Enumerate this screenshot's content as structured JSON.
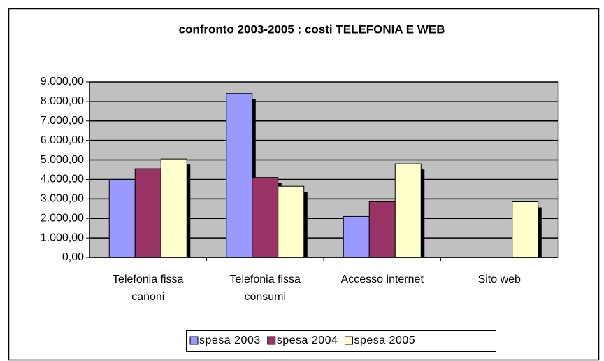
{
  "chart_data": {
    "type": "bar",
    "title": "confronto 2003-2005 : costi TELEFONIA E WEB",
    "categories": [
      "Telefonia fissa\ncanoni",
      "Telefonia fissa\nconsumi",
      "Accesso internet",
      "Sito web"
    ],
    "series": [
      {
        "name": "spesa 2003",
        "color": "#9999ff",
        "values": [
          4000,
          8400,
          2100,
          null
        ]
      },
      {
        "name": "spesa 2004",
        "color": "#993366",
        "values": [
          4550,
          4100,
          2850,
          null
        ]
      },
      {
        "name": "spesa 2005",
        "color": "#ffffcc",
        "values": [
          5050,
          3650,
          4800,
          2850
        ]
      }
    ],
    "ylim": [
      0,
      9000
    ],
    "yticks": [
      {
        "value": 0,
        "label": "0,00"
      },
      {
        "value": 1000,
        "label": "1.000,00"
      },
      {
        "value": 2000,
        "label": "2.000,00"
      },
      {
        "value": 3000,
        "label": "3.000,00"
      },
      {
        "value": 4000,
        "label": "4.000,00"
      },
      {
        "value": 5000,
        "label": "5.000,00"
      },
      {
        "value": 6000,
        "label": "6.000,00"
      },
      {
        "value": 7000,
        "label": "7.000,00"
      },
      {
        "value": 8000,
        "label": "8.000,00"
      },
      {
        "value": 9000,
        "label": "9.000,00"
      }
    ],
    "grid": true,
    "legend": "bottom"
  }
}
